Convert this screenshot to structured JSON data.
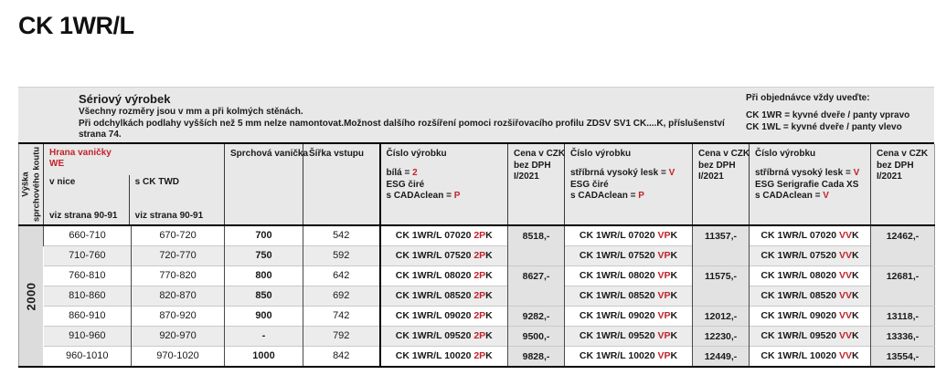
{
  "page": {
    "title": "CK 1WR/L"
  },
  "colors": {
    "accent_red": "#c2232b",
    "header_bg": "#e8e8e8",
    "price_col_bg": "#e2e2e2",
    "alt_row_bg": "#ececec",
    "height_col_bg": "#dcdcdc"
  },
  "info": {
    "product_type": "Sériový výrobek",
    "note_line1": "Všechny rozměry jsou v mm a při kolmých stěnách.",
    "note_line2": "Při odchylkách podlahy vyšších než 5 mm nelze namontovat.Možnost dalšího rozšíření pomoci rozšiřovacího profilu ZDSV SV1 CK....K, příslušenství",
    "note_line3": "strana 74.",
    "order": {
      "title": "Při objednávce vždy uveďte:",
      "line1": "CK 1WR = kyvné dveře / panty vpravo",
      "line2": "CK 1WL = kyvné dveře / panty vlevo"
    }
  },
  "header": {
    "height_label_line1": "Výška",
    "height_label_line2": "sprchového koutu",
    "edge_title": "Hrana vaničky",
    "edge_subtitle": "WE",
    "niche_label": "v nice",
    "niche_ref": "viz strana 90-91",
    "twd_label": "s CK TWD",
    "twd_ref": "viz strana 90-91",
    "tray_label": "Sprchová vanička",
    "entry_label": "Šířka vstupu",
    "product1": {
      "title": "Číslo výrobku",
      "opt1_black": "bílá = ",
      "opt1_red": "2",
      "opt2": "ESG čiré",
      "opt3_black": "s CADAclean = ",
      "opt3_red": "P"
    },
    "price1": {
      "line1": "Cena v CZK",
      "line2": "bez DPH",
      "line3": "I/2021"
    },
    "product2": {
      "title": "Číslo výrobku",
      "opt1_black": "stříbrná vysoký lesk = ",
      "opt1_red": "V",
      "opt2": "ESG čiré",
      "opt3_black": "s CADAclean = ",
      "opt3_red": "P"
    },
    "price2": {
      "line1": "Cena v CZK",
      "line2": "bez DPH",
      "line3": "I/2021"
    },
    "product3": {
      "title": "Číslo výrobku",
      "opt1_black": "stříbrná vysoký lesk = ",
      "opt1_red": "V",
      "opt2": "ESG Serigrafie Cada XS",
      "opt3_black": "s CADAclean = ",
      "opt3_red": "V"
    },
    "price3": {
      "line1": "Cena v CZK",
      "line2": "bez DPH",
      "line3": "I/2021"
    }
  },
  "table": {
    "height_value": "2000",
    "rows": [
      {
        "niche": "660-710",
        "twd": "670-720",
        "tray": "700",
        "entry": "542",
        "codes": [
          {
            "base": "CK 1WR/L 07020",
            "red": "2P",
            "black": "K"
          },
          {
            "base": "CK 1WR/L 07020",
            "red": "VP",
            "black": "K"
          },
          {
            "base": "CK 1WR/L 07020",
            "red": "VV",
            "black": "K"
          }
        ],
        "prices": [
          "8518,-",
          "11357,-",
          "12462,-"
        ],
        "price_rowspan": 2
      },
      {
        "niche": "710-760",
        "twd": "720-770",
        "tray": "750",
        "entry": "592",
        "codes": [
          {
            "base": "CK 1WR/L 07520",
            "red": "2P",
            "black": "K"
          },
          {
            "base": "CK 1WR/L 07520",
            "red": "VP",
            "black": "K"
          },
          {
            "base": "CK 1WR/L 07520",
            "red": "VV",
            "black": "K"
          }
        ],
        "prices": null,
        "price_rowspan": 0
      },
      {
        "niche": "760-810",
        "twd": "770-820",
        "tray": "800",
        "entry": "642",
        "codes": [
          {
            "base": "CK 1WR/L 08020",
            "red": "2P",
            "black": "K"
          },
          {
            "base": "CK 1WR/L 08020",
            "red": "VP",
            "black": "K"
          },
          {
            "base": "CK 1WR/L 08020",
            "red": "VV",
            "black": "K"
          }
        ],
        "prices": [
          "8627,-",
          "11575,-",
          "12681,-"
        ],
        "price_rowspan": 2
      },
      {
        "niche": "810-860",
        "twd": "820-870",
        "tray": "850",
        "entry": "692",
        "codes": [
          {
            "base": "CK 1WR/L 08520",
            "red": "2P",
            "black": "K"
          },
          {
            "base": "CK 1WR/L 08520",
            "red": "VP",
            "black": "K"
          },
          {
            "base": "CK 1WR/L 08520",
            "red": "VV",
            "black": "K"
          }
        ],
        "prices": null,
        "price_rowspan": 0
      },
      {
        "niche": "860-910",
        "twd": "870-920",
        "tray": "900",
        "entry": "742",
        "codes": [
          {
            "base": "CK 1WR/L 09020",
            "red": "2P",
            "black": "K"
          },
          {
            "base": "CK 1WR/L 09020",
            "red": "VP",
            "black": "K"
          },
          {
            "base": "CK 1WR/L 09020",
            "red": "VV",
            "black": "K"
          }
        ],
        "prices": [
          "9282,-",
          "12012,-",
          "13118,-"
        ],
        "price_rowspan": 1
      },
      {
        "niche": "910-960",
        "twd": "920-970",
        "tray": "-",
        "entry": "792",
        "codes": [
          {
            "base": "CK 1WR/L 09520",
            "red": "2P",
            "black": "K"
          },
          {
            "base": "CK 1WR/L 09520",
            "red": "VP",
            "black": "K"
          },
          {
            "base": "CK 1WR/L 09520",
            "red": "VV",
            "black": "K"
          }
        ],
        "prices": [
          "9500,-",
          "12230,-",
          "13336,-"
        ],
        "price_rowspan": 1
      },
      {
        "niche": "960-1010",
        "twd": "970-1020",
        "tray": "1000",
        "entry": "842",
        "codes": [
          {
            "base": "CK 1WR/L 10020",
            "red": "2P",
            "black": "K"
          },
          {
            "base": "CK 1WR/L 10020",
            "red": "VP",
            "black": "K"
          },
          {
            "base": "CK 1WR/L 10020",
            "red": "VV",
            "black": "K"
          }
        ],
        "prices": [
          "9828,-",
          "12449,-",
          "13554,-"
        ],
        "price_rowspan": 1
      }
    ]
  }
}
